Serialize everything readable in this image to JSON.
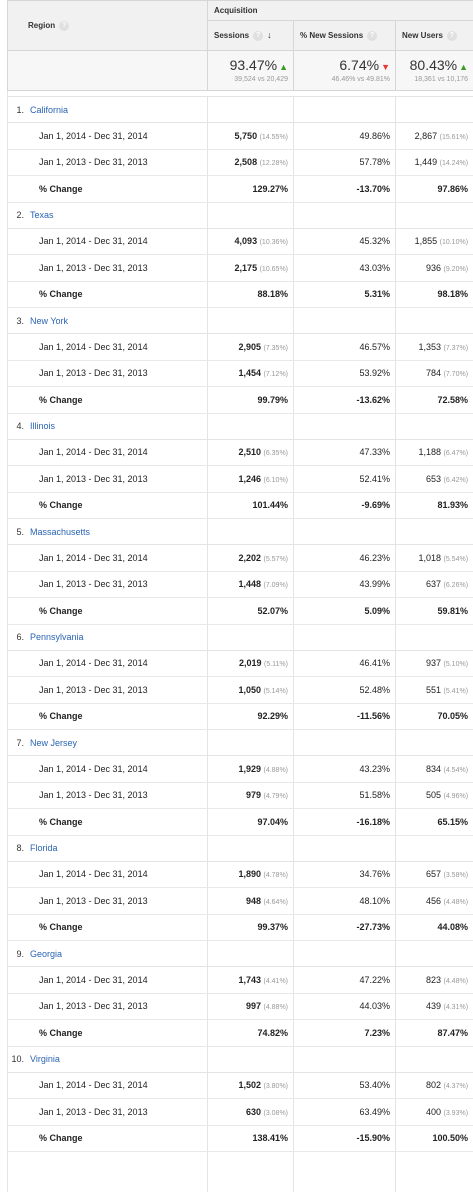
{
  "header": {
    "region_label": "Region",
    "group_label": "Acquisition",
    "columns": {
      "sessions": "Sessions",
      "new_sessions": "% New Sessions",
      "new_users": "New Users"
    }
  },
  "summary": {
    "sessions": {
      "value": "93.47%",
      "compare": "39,524 vs 20,429",
      "trend": "up"
    },
    "new_sessions": {
      "value": "6.74%",
      "compare": "46.46% vs 49.81%",
      "trend": "down"
    },
    "new_users": {
      "value": "80.43%",
      "compare": "18,361 vs 10,176",
      "trend": "up"
    }
  },
  "rows": [
    {
      "index": "1.",
      "name": "California",
      "r2014": {
        "label": "Jan 1, 2014 - Dec 31, 2014",
        "sessions": "5,750",
        "sessions_pct": "(14.55%)",
        "new_sessions": "49.86%",
        "new_users": "2,867",
        "new_users_pct": "(15.61%)"
      },
      "r2013": {
        "label": "Jan 1, 2013 - Dec 31, 2013",
        "sessions": "2,508",
        "sessions_pct": "(12.28%)",
        "new_sessions": "57.78%",
        "new_users": "1,449",
        "new_users_pct": "(14.24%)"
      },
      "change": {
        "label": "% Change",
        "sessions": "129.27%",
        "new_sessions": "-13.70%",
        "new_users": "97.86%"
      }
    },
    {
      "index": "2.",
      "name": "Texas",
      "r2014": {
        "label": "Jan 1, 2014 - Dec 31, 2014",
        "sessions": "4,093",
        "sessions_pct": "(10.36%)",
        "new_sessions": "45.32%",
        "new_users": "1,855",
        "new_users_pct": "(10.10%)"
      },
      "r2013": {
        "label": "Jan 1, 2013 - Dec 31, 2013",
        "sessions": "2,175",
        "sessions_pct": "(10.65%)",
        "new_sessions": "43.03%",
        "new_users": "936",
        "new_users_pct": "(9.20%)"
      },
      "change": {
        "label": "% Change",
        "sessions": "88.18%",
        "new_sessions": "5.31%",
        "new_users": "98.18%"
      }
    },
    {
      "index": "3.",
      "name": "New York",
      "r2014": {
        "label": "Jan 1, 2014 - Dec 31, 2014",
        "sessions": "2,905",
        "sessions_pct": "(7.35%)",
        "new_sessions": "46.57%",
        "new_users": "1,353",
        "new_users_pct": "(7.37%)"
      },
      "r2013": {
        "label": "Jan 1, 2013 - Dec 31, 2013",
        "sessions": "1,454",
        "sessions_pct": "(7.12%)",
        "new_sessions": "53.92%",
        "new_users": "784",
        "new_users_pct": "(7.70%)"
      },
      "change": {
        "label": "% Change",
        "sessions": "99.79%",
        "new_sessions": "-13.62%",
        "new_users": "72.58%"
      }
    },
    {
      "index": "4.",
      "name": "Illinois",
      "r2014": {
        "label": "Jan 1, 2014 - Dec 31, 2014",
        "sessions": "2,510",
        "sessions_pct": "(6.35%)",
        "new_sessions": "47.33%",
        "new_users": "1,188",
        "new_users_pct": "(6.47%)"
      },
      "r2013": {
        "label": "Jan 1, 2013 - Dec 31, 2013",
        "sessions": "1,246",
        "sessions_pct": "(6.10%)",
        "new_sessions": "52.41%",
        "new_users": "653",
        "new_users_pct": "(6.42%)"
      },
      "change": {
        "label": "% Change",
        "sessions": "101.44%",
        "new_sessions": "-9.69%",
        "new_users": "81.93%"
      }
    },
    {
      "index": "5.",
      "name": "Massachusetts",
      "r2014": {
        "label": "Jan 1, 2014 - Dec 31, 2014",
        "sessions": "2,202",
        "sessions_pct": "(5.57%)",
        "new_sessions": "46.23%",
        "new_users": "1,018",
        "new_users_pct": "(5.54%)"
      },
      "r2013": {
        "label": "Jan 1, 2013 - Dec 31, 2013",
        "sessions": "1,448",
        "sessions_pct": "(7.09%)",
        "new_sessions": "43.99%",
        "new_users": "637",
        "new_users_pct": "(6.26%)"
      },
      "change": {
        "label": "% Change",
        "sessions": "52.07%",
        "new_sessions": "5.09%",
        "new_users": "59.81%"
      }
    },
    {
      "index": "6.",
      "name": "Pennsylvania",
      "r2014": {
        "label": "Jan 1, 2014 - Dec 31, 2014",
        "sessions": "2,019",
        "sessions_pct": "(5.11%)",
        "new_sessions": "46.41%",
        "new_users": "937",
        "new_users_pct": "(5.10%)"
      },
      "r2013": {
        "label": "Jan 1, 2013 - Dec 31, 2013",
        "sessions": "1,050",
        "sessions_pct": "(5.14%)",
        "new_sessions": "52.48%",
        "new_users": "551",
        "new_users_pct": "(5.41%)"
      },
      "change": {
        "label": "% Change",
        "sessions": "92.29%",
        "new_sessions": "-11.56%",
        "new_users": "70.05%"
      }
    },
    {
      "index": "7.",
      "name": "New Jersey",
      "r2014": {
        "label": "Jan 1, 2014 - Dec 31, 2014",
        "sessions": "1,929",
        "sessions_pct": "(4.88%)",
        "new_sessions": "43.23%",
        "new_users": "834",
        "new_users_pct": "(4.54%)"
      },
      "r2013": {
        "label": "Jan 1, 2013 - Dec 31, 2013",
        "sessions": "979",
        "sessions_pct": "(4.79%)",
        "new_sessions": "51.58%",
        "new_users": "505",
        "new_users_pct": "(4.96%)"
      },
      "change": {
        "label": "% Change",
        "sessions": "97.04%",
        "new_sessions": "-16.18%",
        "new_users": "65.15%"
      }
    },
    {
      "index": "8.",
      "name": "Florida",
      "r2014": {
        "label": "Jan 1, 2014 - Dec 31, 2014",
        "sessions": "1,890",
        "sessions_pct": "(4.78%)",
        "new_sessions": "34.76%",
        "new_users": "657",
        "new_users_pct": "(3.58%)"
      },
      "r2013": {
        "label": "Jan 1, 2013 - Dec 31, 2013",
        "sessions": "948",
        "sessions_pct": "(4.64%)",
        "new_sessions": "48.10%",
        "new_users": "456",
        "new_users_pct": "(4.48%)"
      },
      "change": {
        "label": "% Change",
        "sessions": "99.37%",
        "new_sessions": "-27.73%",
        "new_users": "44.08%"
      }
    },
    {
      "index": "9.",
      "name": "Georgia",
      "r2014": {
        "label": "Jan 1, 2014 - Dec 31, 2014",
        "sessions": "1,743",
        "sessions_pct": "(4.41%)",
        "new_sessions": "47.22%",
        "new_users": "823",
        "new_users_pct": "(4.48%)"
      },
      "r2013": {
        "label": "Jan 1, 2013 - Dec 31, 2013",
        "sessions": "997",
        "sessions_pct": "(4.88%)",
        "new_sessions": "44.03%",
        "new_users": "439",
        "new_users_pct": "(4.31%)"
      },
      "change": {
        "label": "% Change",
        "sessions": "74.82%",
        "new_sessions": "7.23%",
        "new_users": "87.47%"
      }
    },
    {
      "index": "10.",
      "name": "Virginia",
      "r2014": {
        "label": "Jan 1, 2014 - Dec 31, 2014",
        "sessions": "1,502",
        "sessions_pct": "(3.80%)",
        "new_sessions": "53.40%",
        "new_users": "802",
        "new_users_pct": "(4.37%)"
      },
      "r2013": {
        "label": "Jan 1, 2013 - Dec 31, 2013",
        "sessions": "630",
        "sessions_pct": "(3.08%)",
        "new_sessions": "63.49%",
        "new_users": "400",
        "new_users_pct": "(3.93%)"
      },
      "change": {
        "label": "% Change",
        "sessions": "138.41%",
        "new_sessions": "-15.90%",
        "new_users": "100.50%"
      }
    }
  ]
}
